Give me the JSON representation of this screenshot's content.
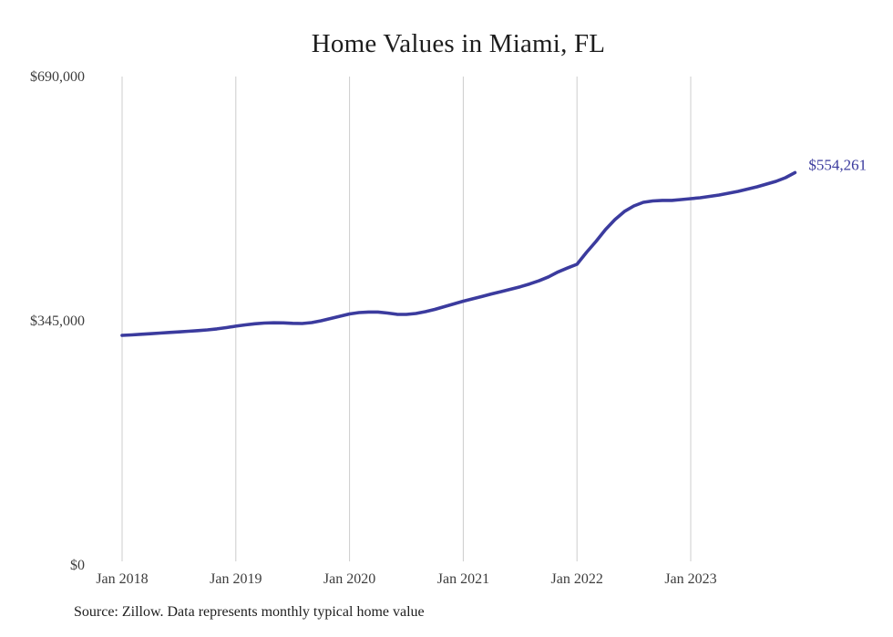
{
  "page": {
    "title": "Home Values in Miami, FL",
    "source_note": "Source: Zillow. Data represents monthly typical home value"
  },
  "chart_data": {
    "type": "line",
    "title": "Home Values in Miami, FL",
    "series_name": "Monthly typical home value",
    "x": [
      "2018-01",
      "2018-02",
      "2018-03",
      "2018-04",
      "2018-05",
      "2018-06",
      "2018-07",
      "2018-08",
      "2018-09",
      "2018-10",
      "2018-11",
      "2018-12",
      "2019-01",
      "2019-02",
      "2019-03",
      "2019-04",
      "2019-05",
      "2019-06",
      "2019-07",
      "2019-08",
      "2019-09",
      "2019-10",
      "2019-11",
      "2019-12",
      "2020-01",
      "2020-02",
      "2020-03",
      "2020-04",
      "2020-05",
      "2020-06",
      "2020-07",
      "2020-08",
      "2020-09",
      "2020-10",
      "2020-11",
      "2020-12",
      "2021-01",
      "2021-02",
      "2021-03",
      "2021-04",
      "2021-05",
      "2021-06",
      "2021-07",
      "2021-08",
      "2021-09",
      "2021-10",
      "2021-11",
      "2021-12",
      "2022-01",
      "2022-02",
      "2022-03",
      "2022-04",
      "2022-05",
      "2022-06",
      "2022-07",
      "2022-08",
      "2022-09",
      "2022-10",
      "2022-11",
      "2022-12",
      "2023-01",
      "2023-02",
      "2023-03",
      "2023-04",
      "2023-05",
      "2023-06",
      "2023-07",
      "2023-08",
      "2023-09",
      "2023-10",
      "2023-11",
      "2023-12"
    ],
    "values": [
      324400,
      325000,
      325900,
      326700,
      327600,
      328500,
      329300,
      330200,
      331100,
      332100,
      333600,
      335400,
      337400,
      339200,
      340700,
      341800,
      342200,
      342000,
      341400,
      341100,
      342400,
      345000,
      348200,
      351400,
      354600,
      356600,
      357400,
      357400,
      355900,
      354200,
      354000,
      355300,
      357900,
      361100,
      364900,
      368800,
      372700,
      376000,
      379500,
      383000,
      386200,
      389500,
      393000,
      397000,
      401500,
      407000,
      414000,
      419500,
      424800,
      441600,
      457000,
      473700,
      487900,
      499400,
      507200,
      512300,
      514300,
      515000,
      515000,
      516200,
      517500,
      518800,
      520700,
      522600,
      525200,
      527800,
      531000,
      534200,
      538100,
      542000,
      547100,
      554261
    ],
    "x_tick_labels": [
      "Jan 2018",
      "Jan 2019",
      "Jan 2020",
      "Jan 2021",
      "Jan 2022",
      "Jan 2023"
    ],
    "y_ticks": [
      {
        "label": "$690,000",
        "value": 690000
      },
      {
        "label": "$345,000",
        "value": 345000
      },
      {
        "label": "$0",
        "value": 0
      }
    ],
    "ylim": [
      0,
      690000
    ],
    "end_label": "$554,261",
    "legend": "none",
    "grid": "vertical-only",
    "line_color": "#3b3b9e",
    "gridline_color": "#cccccc",
    "tick_text_color": "#3d3d3d"
  }
}
